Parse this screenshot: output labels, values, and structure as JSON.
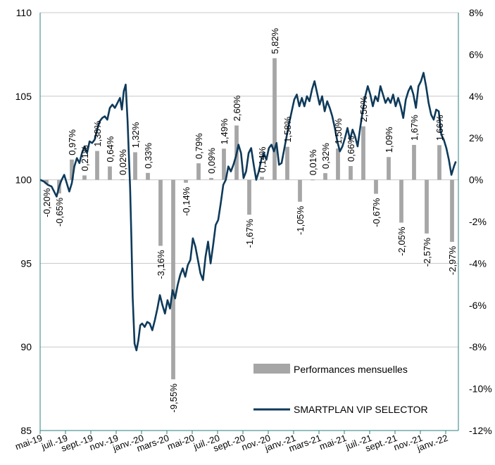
{
  "chart_data": {
    "type": "bar+line",
    "x_ticks": [
      "mai-19",
      "juil.-19",
      "sept.-19",
      "nov.-19",
      "janv.-20",
      "mars-20",
      "mai-20",
      "juil.-20",
      "sept.-20",
      "nov.-20",
      "janv.-21",
      "mars-21",
      "mai-21",
      "juil.-21",
      "sept.-21",
      "nov.-21",
      "janv.-22"
    ],
    "y_left": {
      "min": 85,
      "max": 110,
      "ticks": [
        "85",
        "90",
        "95",
        "100",
        "105",
        "110"
      ]
    },
    "y_right": {
      "min": -12,
      "max": 8,
      "ticks": [
        "-12%",
        "-10%",
        "-8%",
        "-6%",
        "-4%",
        "-2%",
        "0%",
        "2%",
        "4%",
        "6%",
        "8%"
      ]
    },
    "grid": "horizontal",
    "legend_position": "bottom-right",
    "series": [
      {
        "name": "Performances mensuelles",
        "type": "bar",
        "axis": "right",
        "color": "#a6a6a6",
        "values": [
          -0.2,
          -0.65,
          0.97,
          0.21,
          1.38,
          0.64,
          0.02,
          1.32,
          0.33,
          -3.16,
          -9.55,
          -0.14,
          0.79,
          0.09,
          1.49,
          2.6,
          -1.67,
          0.14,
          5.82,
          1.58,
          -1.05,
          0.01,
          0.32,
          1.5,
          0.66,
          2.56,
          -0.67,
          1.09,
          -2.05,
          1.67,
          -2.57,
          1.66,
          -2.97
        ],
        "labels": [
          "-0,20%",
          "-0,65%",
          "0,97%",
          "0,21%",
          "1,38%",
          "0,64%",
          "0,02%",
          "1,32%",
          "0,33%",
          "-3,16%",
          "-9,55%",
          "-0,14%",
          "0,79%",
          "0,09%",
          "1,49%",
          "2,60%",
          "-1,67%",
          "0,14%",
          "5,82%",
          "1,58%",
          "-1,05%",
          "0,01%",
          "0,32%",
          "1,50%",
          "0,66%",
          "2,56%",
          "-0,67%",
          "1,09%",
          "-2,05%",
          "1,67%",
          "-2,57%",
          "1,66%",
          "-2,97%"
        ]
      },
      {
        "name": "SMARTPLAN VIP SELECTOR",
        "type": "line",
        "axis": "left",
        "color": "#0e3a5a",
        "points": [
          [
            0,
            100
          ],
          [
            0.3,
            99.9
          ],
          [
            0.6,
            99.7
          ],
          [
            0.9,
            99.6
          ],
          [
            1.1,
            99.3
          ],
          [
            1.3,
            99.0
          ],
          [
            1.5,
            99.6
          ],
          [
            1.7,
            100.0
          ],
          [
            1.9,
            100.3
          ],
          [
            2.1,
            99.8
          ],
          [
            2.3,
            99.3
          ],
          [
            2.5,
            99.8
          ],
          [
            2.7,
            100.8
          ],
          [
            2.9,
            101.3
          ],
          [
            3.1,
            101.0
          ],
          [
            3.3,
            101.6
          ],
          [
            3.5,
            102.0
          ],
          [
            3.7,
            101.6
          ],
          [
            3.9,
            102.3
          ],
          [
            4.1,
            102.2
          ],
          [
            4.3,
            102.4
          ],
          [
            4.5,
            103.0
          ],
          [
            4.7,
            103.5
          ],
          [
            4.9,
            103.7
          ],
          [
            5.1,
            103.8
          ],
          [
            5.3,
            103.6
          ],
          [
            5.5,
            104.3
          ],
          [
            5.7,
            104.5
          ],
          [
            5.9,
            104.3
          ],
          [
            6.1,
            104.6
          ],
          [
            6.3,
            104.9
          ],
          [
            6.45,
            104.2
          ],
          [
            6.6,
            105.3
          ],
          [
            6.75,
            105.7
          ],
          [
            6.9,
            103.5
          ],
          [
            7.0,
            101.5
          ],
          [
            7.1,
            99.5
          ],
          [
            7.2,
            96.5
          ],
          [
            7.3,
            93.0
          ],
          [
            7.45,
            90.2
          ],
          [
            7.6,
            89.8
          ],
          [
            7.75,
            90.4
          ],
          [
            7.9,
            91.3
          ],
          [
            8.05,
            91.4
          ],
          [
            8.25,
            91.2
          ],
          [
            8.45,
            91.5
          ],
          [
            8.65,
            91.4
          ],
          [
            8.85,
            91.0
          ],
          [
            9.05,
            91.6
          ],
          [
            9.25,
            92.3
          ],
          [
            9.45,
            93.1
          ],
          [
            9.65,
            92.5
          ],
          [
            9.85,
            92.0
          ],
          [
            10.05,
            92.8
          ],
          [
            10.25,
            92.3
          ],
          [
            10.45,
            93.4
          ],
          [
            10.65,
            92.9
          ],
          [
            10.85,
            93.7
          ],
          [
            11.05,
            94.3
          ],
          [
            11.25,
            94.7
          ],
          [
            11.45,
            94.2
          ],
          [
            11.65,
            94.9
          ],
          [
            11.85,
            95.2
          ],
          [
            12.05,
            96.5
          ],
          [
            12.25,
            96.0
          ],
          [
            12.45,
            95.2
          ],
          [
            12.65,
            94.4
          ],
          [
            12.85,
            94.0
          ],
          [
            13.05,
            95.4
          ],
          [
            13.25,
            96.3
          ],
          [
            13.45,
            95.0
          ],
          [
            13.65,
            96.1
          ],
          [
            13.85,
            97.3
          ],
          [
            14.05,
            97.6
          ],
          [
            14.25,
            98.6
          ],
          [
            14.45,
            99.7
          ],
          [
            14.65,
            100.0
          ],
          [
            14.85,
            100.8
          ],
          [
            15.05,
            100.5
          ],
          [
            15.25,
            100.9
          ],
          [
            15.45,
            101.4
          ],
          [
            15.65,
            102.1
          ],
          [
            15.85,
            101.6
          ],
          [
            16.05,
            100.1
          ],
          [
            16.25,
            100.5
          ],
          [
            16.45,
            101.6
          ],
          [
            16.65,
            101.9
          ],
          [
            16.85,
            100.9
          ],
          [
            17.05,
            100.0
          ],
          [
            17.25,
            100.5
          ],
          [
            17.45,
            101.2
          ],
          [
            17.65,
            101.6
          ],
          [
            17.85,
            101.2
          ],
          [
            18.05,
            101.9
          ],
          [
            18.25,
            102.1
          ],
          [
            18.45,
            101.7
          ],
          [
            18.65,
            102.2
          ],
          [
            18.85,
            100.9
          ],
          [
            19.05,
            101.0
          ],
          [
            19.25,
            101.8
          ],
          [
            19.45,
            102.6
          ],
          [
            19.65,
            103.4
          ],
          [
            19.85,
            104.1
          ],
          [
            20.05,
            104.8
          ],
          [
            20.25,
            105.1
          ],
          [
            20.45,
            104.4
          ],
          [
            20.65,
            104.9
          ],
          [
            20.85,
            104.4
          ],
          [
            21.05,
            105.0
          ],
          [
            21.25,
            104.7
          ],
          [
            21.45,
            105.4
          ],
          [
            21.65,
            105.9
          ],
          [
            21.85,
            105.2
          ],
          [
            22.05,
            104.5
          ],
          [
            22.25,
            105.0
          ],
          [
            22.45,
            104.1
          ],
          [
            22.65,
            104.7
          ],
          [
            22.85,
            104.3
          ],
          [
            23.05,
            103.8
          ],
          [
            23.25,
            103.1
          ],
          [
            23.45,
            102.3
          ],
          [
            23.65,
            101.7
          ],
          [
            23.85,
            102.0
          ],
          [
            24.05,
            102.5
          ],
          [
            24.25,
            103.1
          ],
          [
            24.45,
            102.4
          ],
          [
            24.65,
            103.0
          ],
          [
            24.85,
            102.6
          ],
          [
            25.05,
            102.0
          ],
          [
            25.25,
            103.1
          ],
          [
            25.45,
            104.1
          ],
          [
            25.65,
            105.0
          ],
          [
            25.85,
            105.6
          ],
          [
            26.05,
            105.1
          ],
          [
            26.25,
            104.4
          ],
          [
            26.45,
            105.0
          ],
          [
            26.65,
            104.7
          ],
          [
            26.85,
            105.6
          ],
          [
            27.05,
            105.1
          ],
          [
            27.25,
            104.6
          ],
          [
            27.45,
            104.9
          ],
          [
            27.65,
            104.6
          ],
          [
            27.85,
            105.1
          ],
          [
            28.05,
            104.4
          ],
          [
            28.25,
            104.9
          ],
          [
            28.45,
            104.4
          ],
          [
            28.65,
            103.7
          ],
          [
            28.85,
            104.8
          ],
          [
            29.05,
            105.3
          ],
          [
            29.25,
            105.6
          ],
          [
            29.45,
            105.1
          ],
          [
            29.65,
            104.3
          ],
          [
            29.85,
            105.6
          ],
          [
            30.05,
            105.9
          ],
          [
            30.25,
            106.4
          ],
          [
            30.45,
            105.6
          ],
          [
            30.65,
            104.6
          ],
          [
            30.85,
            103.9
          ],
          [
            31.05,
            103.6
          ],
          [
            31.25,
            104.2
          ],
          [
            31.45,
            104.1
          ],
          [
            31.65,
            102.7
          ],
          [
            31.85,
            102.4
          ],
          [
            32.05,
            101.9
          ],
          [
            32.25,
            101.2
          ],
          [
            32.45,
            100.3
          ],
          [
            32.65,
            100.8
          ],
          [
            32.8,
            101.1
          ]
        ]
      }
    ]
  }
}
